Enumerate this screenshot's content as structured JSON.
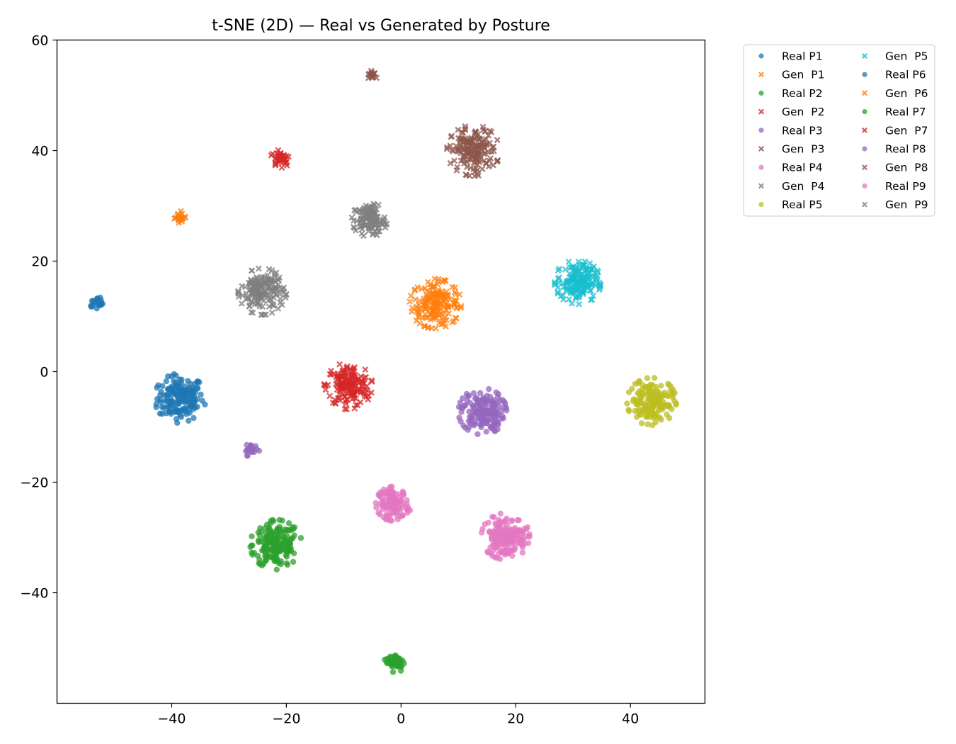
{
  "chart_data": {
    "type": "scatter",
    "title": "t-SNE (2D) — Real vs Generated by Posture",
    "xlabel": "",
    "ylabel": "",
    "xlim": [
      -60,
      53
    ],
    "ylim": [
      -60,
      60
    ],
    "xticks": [
      -40,
      -20,
      0,
      20,
      40
    ],
    "xtick_labels": [
      "−40",
      "−20",
      "0",
      "20",
      "40"
    ],
    "yticks": [
      -40,
      -20,
      0,
      20,
      40,
      60
    ],
    "ytick_labels": [
      "−40",
      "−20",
      "0",
      "20",
      "40",
      "60"
    ],
    "grid": false,
    "legend_placement": "outside top-right, 2 columns",
    "series": [
      {
        "name": "Real P1",
        "marker": "circle",
        "color": "#1f77b4",
        "clusters": [
          {
            "cx": -38.5,
            "cy": -4.8,
            "r": 4.5,
            "n": 160
          }
        ]
      },
      {
        "name": "Gen  P1",
        "marker": "x",
        "color": "#ff7f0e",
        "clusters": [
          {
            "cx": 6.0,
            "cy": 12.3,
            "r": 4.5,
            "n": 180
          }
        ]
      },
      {
        "name": "Real P2",
        "marker": "circle",
        "color": "#2ca02c",
        "clusters": [
          {
            "cx": -21.8,
            "cy": -31.3,
            "r": 4.5,
            "n": 180
          }
        ]
      },
      {
        "name": "Gen  P2",
        "marker": "x",
        "color": "#d62728",
        "clusters": [
          {
            "cx": -9.2,
            "cy": -2.6,
            "r": 4.2,
            "n": 170
          }
        ]
      },
      {
        "name": "Real P3",
        "marker": "circle",
        "color": "#9467bd",
        "clusters": [
          {
            "cx": 14.2,
            "cy": -7.2,
            "r": 4.2,
            "n": 160
          }
        ]
      },
      {
        "name": "Gen  P3",
        "marker": "x",
        "color": "#8c564b",
        "clusters": [
          {
            "cx": 12.6,
            "cy": 40.0,
            "r": 4.6,
            "n": 170
          }
        ]
      },
      {
        "name": "Real P4",
        "marker": "circle",
        "color": "#e377c2",
        "clusters": [
          {
            "cx": -1.3,
            "cy": -23.9,
            "r": 3.1,
            "n": 110
          }
        ]
      },
      {
        "name": "Gen  P4",
        "marker": "x",
        "color": "#7f7f7f",
        "clusters": [
          {
            "cx": -24.2,
            "cy": 14.5,
            "r": 4.2,
            "n": 170
          }
        ]
      },
      {
        "name": "Real P5",
        "marker": "circle",
        "color": "#bcbd22",
        "clusters": [
          {
            "cx": 43.7,
            "cy": -5.4,
            "r": 4.3,
            "n": 160
          }
        ]
      },
      {
        "name": "Gen  P5",
        "marker": "x",
        "color": "#17becf",
        "clusters": [
          {
            "cx": 30.8,
            "cy": 16.2,
            "r": 4.0,
            "n": 170
          }
        ]
      },
      {
        "name": "Real P6",
        "marker": "circle",
        "color": "#1f77b4",
        "clusters": [
          {
            "cx": -53.0,
            "cy": 12.4,
            "r": 1.2,
            "n": 22
          }
        ]
      },
      {
        "name": "Gen  P6",
        "marker": "x",
        "color": "#ff7f0e",
        "clusters": [
          {
            "cx": -38.6,
            "cy": 28.0,
            "r": 1.1,
            "n": 22
          }
        ]
      },
      {
        "name": "Real P7",
        "marker": "circle",
        "color": "#2ca02c",
        "clusters": [
          {
            "cx": -1.0,
            "cy": -52.5,
            "r": 1.9,
            "n": 45
          }
        ]
      },
      {
        "name": "Gen  P7",
        "marker": "x",
        "color": "#d62728",
        "clusters": [
          {
            "cx": -21.0,
            "cy": 38.7,
            "r": 1.8,
            "n": 40
          }
        ]
      },
      {
        "name": "Real P8",
        "marker": "circle",
        "color": "#9467bd",
        "clusters": [
          {
            "cx": -26.0,
            "cy": -14.2,
            "r": 1.3,
            "n": 22
          }
        ]
      },
      {
        "name": "Gen  P8",
        "marker": "x",
        "color": "#8c564b",
        "clusters": [
          {
            "cx": -5.0,
            "cy": 53.7,
            "r": 0.9,
            "n": 18
          }
        ]
      },
      {
        "name": "Real P9",
        "marker": "circle",
        "color": "#e377c2",
        "clusters": [
          {
            "cx": 18.2,
            "cy": -29.8,
            "r": 4.2,
            "n": 170
          }
        ]
      },
      {
        "name": "Gen  P9",
        "marker": "x",
        "color": "#7f7f7f",
        "clusters": [
          {
            "cx": -5.5,
            "cy": 27.5,
            "r": 3.1,
            "n": 110
          }
        ]
      }
    ]
  }
}
